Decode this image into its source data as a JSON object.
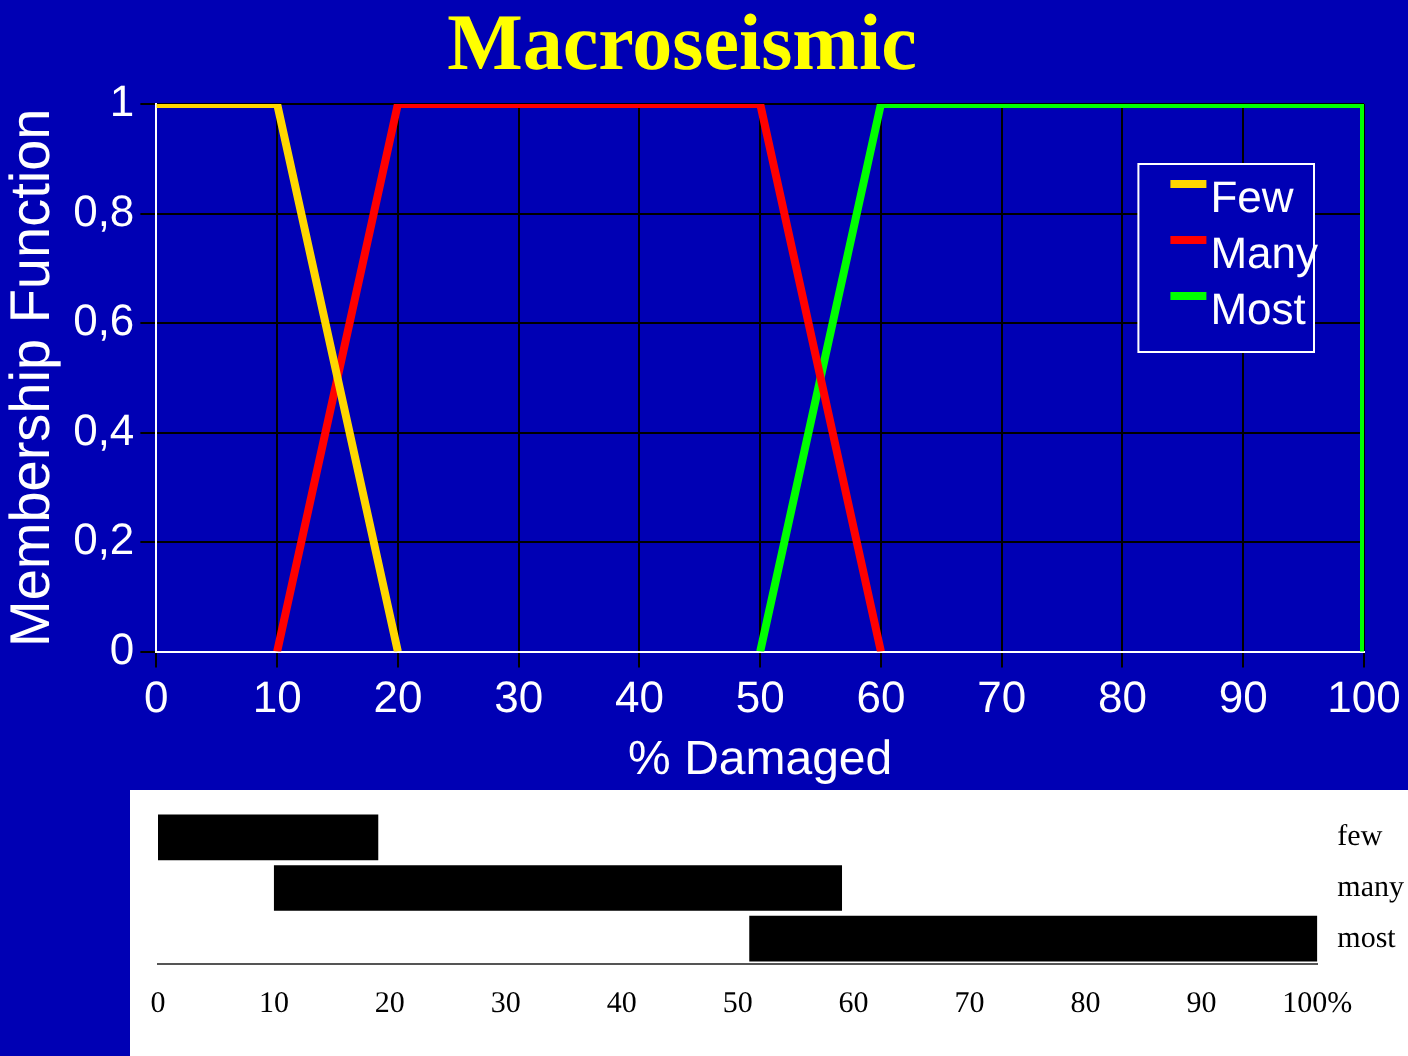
{
  "chart_data": [
    {
      "type": "line",
      "title": "Macroseismic",
      "xlabel": "% Damaged",
      "ylabel": "Membership Function",
      "series": [
        {
          "name": "Few",
          "color": "#ffd700",
          "x": [
            0,
            10,
            20
          ],
          "values": [
            1,
            1,
            0
          ]
        },
        {
          "name": "Many",
          "color": "#ff0000",
          "x": [
            10,
            20,
            50,
            60
          ],
          "values": [
            0,
            1,
            1,
            0
          ]
        },
        {
          "name": "Most",
          "color": "#00ff00",
          "x": [
            50,
            60,
            100,
            100
          ],
          "values": [
            0,
            1,
            1,
            0
          ]
        }
      ],
      "xlim": [
        0,
        100
      ],
      "xticks": [
        0,
        10,
        20,
        30,
        40,
        50,
        60,
        70,
        80,
        90,
        100
      ],
      "ylim": [
        0,
        1
      ],
      "yticks": [
        0,
        {
          "value": 0.2,
          "label": "0,2"
        },
        {
          "value": 0.4,
          "label": "0,4"
        },
        {
          "value": 0.6,
          "label": "0,6"
        },
        {
          "value": 0.8,
          "label": "0,8"
        },
        1
      ],
      "grid": true,
      "legend": "top right",
      "marker": "none",
      "line_style": "solid"
    },
    {
      "type": "bar",
      "orientation": "horizontal",
      "categories": [
        "few",
        "many",
        "most"
      ],
      "base": [
        0,
        10,
        51
      ],
      "values": [
        19,
        49,
        49
      ],
      "color": "#000000",
      "xlim": [
        0,
        100
      ],
      "xticks": [
        0,
        10,
        20,
        30,
        40,
        50,
        60,
        70,
        80,
        90,
        {
          "value": 100,
          "label": "100%"
        }
      ],
      "grid": false,
      "legend": false
    }
  ]
}
